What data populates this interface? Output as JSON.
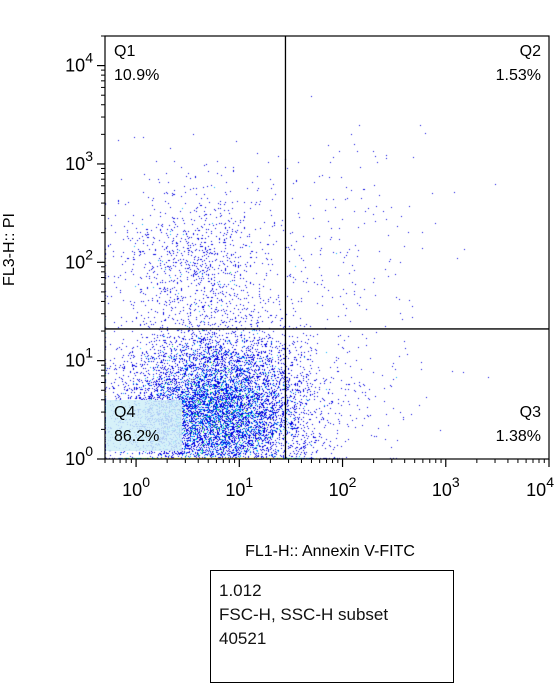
{
  "chart_data": {
    "type": "scatter",
    "title": "",
    "xlabel": "FL1-H:: Annexin V-FITC",
    "ylabel": "FL3-H:: PI",
    "x_scale": "log",
    "y_scale": "log",
    "xlim": [
      0.5,
      10000
    ],
    "ylim": [
      1,
      20000
    ],
    "x_tick_labels": [
      "10^0",
      "10^1",
      "10^2",
      "10^3",
      "10^4"
    ],
    "y_tick_labels": [
      "10^0",
      "10^1",
      "10^2",
      "10^3",
      "10^4"
    ],
    "x_gate": 28,
    "y_gate": 21,
    "grid": false,
    "quadrants": [
      {
        "name": "Q1",
        "percent": "10.9%",
        "position": "top-left"
      },
      {
        "name": "Q2",
        "percent": "1.53%",
        "position": "top-right"
      },
      {
        "name": "Q3",
        "percent": "1.38%",
        "position": "bottom-right"
      },
      {
        "name": "Q4",
        "percent": "86.2%",
        "position": "bottom-left"
      }
    ],
    "density_colors": [
      "#0000e0",
      "#00b0ff",
      "#00e070",
      "#d0f000",
      "#ffe000"
    ],
    "populations": [
      {
        "region": "Q4",
        "x_center": 6,
        "y_center": 3,
        "x_spread_decades": 0.45,
        "y_spread_decades": 0.4,
        "fraction": 0.862
      },
      {
        "region": "Q1",
        "x_center": 4,
        "y_center": 90,
        "x_spread_decades": 0.4,
        "y_spread_decades": 0.45,
        "fraction": 0.109
      },
      {
        "region": "Q2",
        "x_center": 120,
        "y_center": 150,
        "x_spread_decades": 0.5,
        "y_spread_decades": 0.55,
        "fraction": 0.0153
      },
      {
        "region": "Q3",
        "x_center": 80,
        "y_center": 5,
        "x_spread_decades": 0.5,
        "y_spread_decades": 0.35,
        "fraction": 0.0138
      }
    ]
  },
  "info_box": {
    "line1": "1.012",
    "line2": "FSC-H, SSC-H subset",
    "line3": "40521"
  }
}
